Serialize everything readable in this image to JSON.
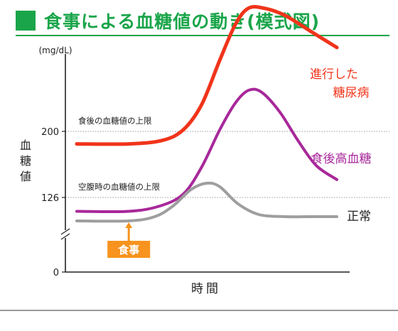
{
  "title": "食事による血糖値の動き(模式図)",
  "colors": {
    "title_green": "#1aa54a",
    "diabetes": "#f0341a",
    "postprandial": "#a8289a",
    "normal": "#9e9e9e",
    "meal_badge": "#f7931e",
    "axis": "#222222",
    "reference": "#9a9a9a"
  },
  "chart_data": {
    "type": "line",
    "title": "食事による血糖値の動き(模式図)",
    "xlabel": "時間",
    "ylabel": "血糖値",
    "y_unit": "(mg/dL)",
    "y_ticks": [
      0,
      126,
      200
    ],
    "y_axis_break": true,
    "grid": false,
    "x_range": [
      0,
      100
    ],
    "reference_lines": [
      {
        "value": 200,
        "label": "食後の血糖値の上限"
      },
      {
        "value": 126,
        "label": "空腹時の血糖値の上限"
      }
    ],
    "meal_marker": {
      "label": "食事",
      "x": 20
    },
    "series": [
      {
        "name": "進行した糖尿病",
        "color_key": "diabetes",
        "points": [
          [
            0,
            186
          ],
          [
            20,
            186
          ],
          [
            33,
            190
          ],
          [
            41,
            202
          ],
          [
            48,
            230
          ],
          [
            55,
            280
          ],
          [
            61,
            320
          ],
          [
            66,
            338
          ],
          [
            72,
            338
          ],
          [
            80,
            330
          ],
          [
            90,
            312
          ],
          [
            100,
            294
          ]
        ]
      },
      {
        "name": "食後高血糖",
        "color_key": "postprandial",
        "points": [
          [
            0,
            113
          ],
          [
            20,
            113
          ],
          [
            32,
            118
          ],
          [
            41,
            130
          ],
          [
            48,
            160
          ],
          [
            55,
            202
          ],
          [
            61,
            232
          ],
          [
            66,
            246
          ],
          [
            71,
            244
          ],
          [
            78,
            222
          ],
          [
            85,
            190
          ],
          [
            92,
            162
          ],
          [
            100,
            146
          ]
        ]
      },
      {
        "name": "正常",
        "color_key": "normal",
        "points": [
          [
            0,
            104
          ],
          [
            20,
            104
          ],
          [
            30,
            108
          ],
          [
            37,
            118
          ],
          [
            44,
            135
          ],
          [
            50,
            142
          ],
          [
            55,
            138
          ],
          [
            62,
            120
          ],
          [
            70,
            110
          ],
          [
            80,
            108
          ],
          [
            90,
            108
          ],
          [
            100,
            108
          ]
        ]
      }
    ]
  }
}
